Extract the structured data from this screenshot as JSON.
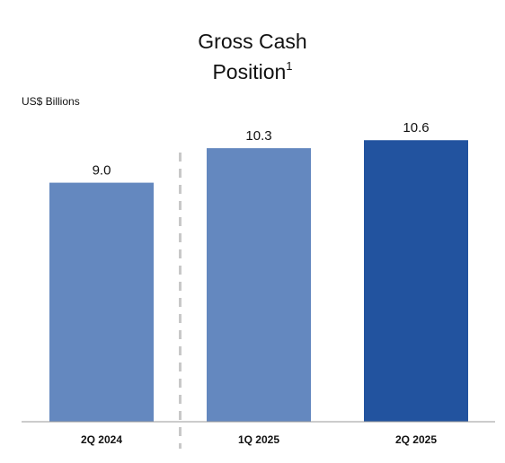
{
  "chart_data": {
    "type": "bar",
    "title_line1": "Gross Cash",
    "title_line2": "Position",
    "title_footnote": "1",
    "unit_label": "US$ Billions",
    "categories": [
      "2Q 2024",
      "1Q 2025",
      "2Q 2025"
    ],
    "values": [
      9.0,
      10.3,
      10.6
    ],
    "value_labels": [
      "9.0",
      "10.3",
      "10.6"
    ],
    "bar_colors": [
      "#6488bf",
      "#6488bf",
      "#22539f"
    ],
    "separator_after_index": 0,
    "ylim": [
      0,
      12.5
    ],
    "grid": false,
    "legend": "none"
  }
}
